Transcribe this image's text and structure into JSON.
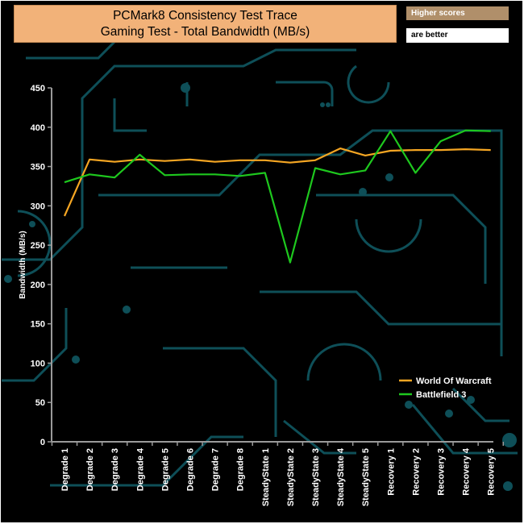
{
  "header": {
    "title_line1": "PCMark8 Consistency Test Trace",
    "title_line2": "Gaming Test - Total Bandwidth (MB/s)",
    "badge_top": "Higher scores",
    "badge_bottom": "are better"
  },
  "colors": {
    "background": "#000000",
    "circuit": "#0e4f58",
    "axis": "#9a9a9a",
    "title_bg": "#f2b279",
    "series_wow": "#f5a623",
    "series_bf3": "#1ec81e"
  },
  "chart_data": {
    "type": "line",
    "ylabel": "Bandwidth (MB/s)",
    "xlabel": "",
    "ylim": [
      0,
      450
    ],
    "ytick_step": 50,
    "yticks": [
      "0",
      "50",
      "100",
      "150",
      "200",
      "250",
      "300",
      "350",
      "400",
      "450"
    ],
    "grid": false,
    "legend_position": "bottom-right",
    "categories": [
      "Degrade 1",
      "Degrade 2",
      "Degrade 3",
      "Degrade 4",
      "Degrade 5",
      "Degrade 6",
      "Degrade 7",
      "Degrade 8",
      "SteadyState 1",
      "SteadyState 2",
      "SteadyState 3",
      "SteadyState 4",
      "SteadyState 5",
      "Recovery 1",
      "Recovery 2",
      "Recovery 3",
      "Recovery 4",
      "Recovery 5"
    ],
    "series": [
      {
        "name": "World Of Warcraft",
        "color": "#f5a623",
        "values": [
          287,
          359,
          356,
          359,
          357,
          359,
          356,
          358,
          358,
          355,
          358,
          373,
          364,
          370,
          371,
          371,
          372,
          371
        ]
      },
      {
        "name": "Battlefield 3",
        "color": "#1ec81e",
        "values": [
          330,
          340,
          336,
          365,
          339,
          340,
          340,
          338,
          342,
          228,
          348,
          340,
          345,
          395,
          342,
          382,
          396,
          395
        ]
      }
    ]
  }
}
